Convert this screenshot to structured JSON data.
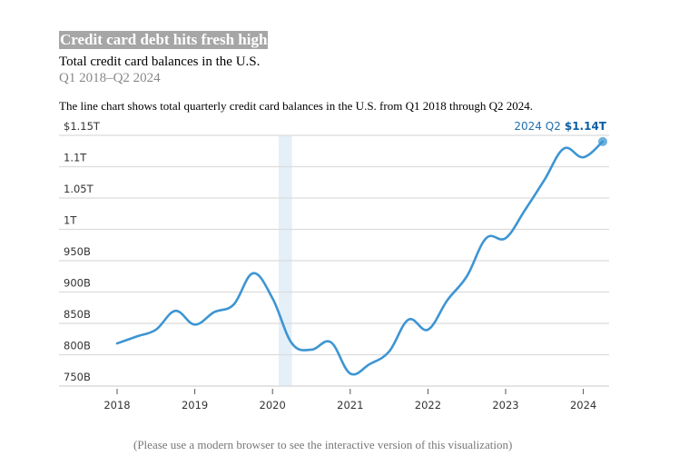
{
  "header": {
    "title": "Credit card debt hits fresh high",
    "subtitle": "Total credit card balances in the U.S.",
    "date_range": "Q1 2018–Q2 2024",
    "description": "The line chart shows total quarterly credit card balances in the U.S. from Q1 2018 through Q2 2024."
  },
  "footer": {
    "note": "(Please use a modern browser to see the interactive version of this visualization)"
  },
  "colors": {
    "line": "#3d95d3",
    "band": "#e4eff8",
    "grid": "#dcdcdc",
    "annotation": "#1f6fae"
  },
  "chart_data": {
    "type": "line",
    "title": "Credit card debt hits fresh high",
    "subtitle": "Total credit card balances in the U.S.",
    "xlabel": "",
    "ylabel": "",
    "units": "billions of dollars",
    "ylim": [
      750,
      1150
    ],
    "xlim": [
      2017.6,
      2024.35
    ],
    "grid": true,
    "y_ticks": [
      750,
      800,
      850,
      900,
      950,
      1000,
      1050,
      1100,
      1150
    ],
    "y_tick_labels": [
      "750B",
      "800B",
      "850B",
      "900B",
      "950B",
      "1T",
      "1.05T",
      "1.1T",
      "$1.15T"
    ],
    "x_ticks": [
      2018,
      2019,
      2020,
      2021,
      2022,
      2023,
      2024
    ],
    "x_tick_labels": [
      "2018",
      "2019",
      "2020",
      "2021",
      "2022",
      "2023",
      "2024"
    ],
    "highlight_band": {
      "x_start": 2020.08,
      "x_end": 2020.25
    },
    "series": [
      {
        "name": "Total credit card balances",
        "x": [
          2018.0,
          2018.25,
          2018.5,
          2018.75,
          2019.0,
          2019.25,
          2019.5,
          2019.75,
          2020.0,
          2020.25,
          2020.5,
          2020.75,
          2021.0,
          2021.25,
          2021.5,
          2021.75,
          2022.0,
          2022.25,
          2022.5,
          2022.75,
          2023.0,
          2023.25,
          2023.5,
          2023.75,
          2024.0,
          2024.25
        ],
        "quarters": [
          "Q1 2018",
          "Q2 2018",
          "Q3 2018",
          "Q4 2018",
          "Q1 2019",
          "Q2 2019",
          "Q3 2019",
          "Q4 2019",
          "Q1 2020",
          "Q2 2020",
          "Q3 2020",
          "Q4 2020",
          "Q1 2021",
          "Q2 2021",
          "Q3 2021",
          "Q4 2021",
          "Q1 2022",
          "Q2 2022",
          "Q3 2022",
          "Q4 2022",
          "Q1 2023",
          "Q2 2023",
          "Q3 2023",
          "Q4 2023",
          "Q1 2024",
          "Q2 2024"
        ],
        "values": [
          818,
          829,
          840,
          870,
          848,
          868,
          880,
          930,
          890,
          818,
          808,
          820,
          770,
          785,
          805,
          856,
          840,
          887,
          925,
          986,
          986,
          1031,
          1079,
          1129,
          1115,
          1140
        ]
      }
    ],
    "annotation": {
      "label": "2024 Q2",
      "value": "$1.14T",
      "x": 2024.25,
      "y": 1140
    }
  }
}
